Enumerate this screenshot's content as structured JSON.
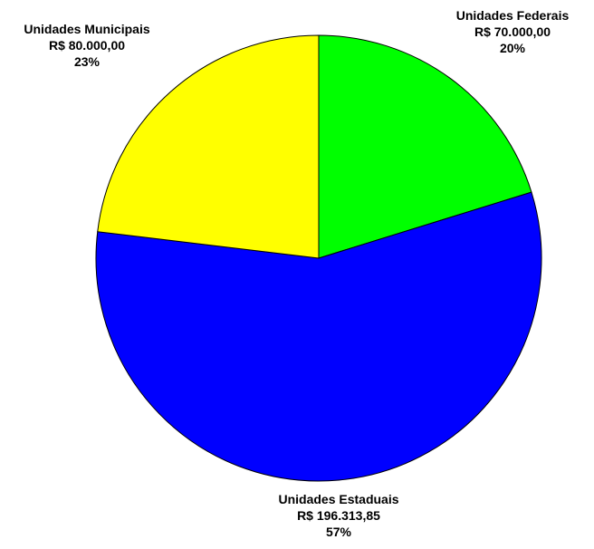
{
  "chart_data": {
    "type": "pie",
    "slices": [
      {
        "name": "Unidades Federais",
        "amount_label": "R$ 70.000,00",
        "value": 70000.0,
        "percent_label": "20%",
        "color": "#00FF00"
      },
      {
        "name": "Unidades Estaduais",
        "amount_label": "R$ 196.313,85",
        "value": 196313.85,
        "percent_label": "57%",
        "color": "#0000FF"
      },
      {
        "name": "Unidades Municipais",
        "amount_label": "R$ 80.000,00",
        "value": 80000.0,
        "percent_label": "23%",
        "color": "#FFFF00"
      }
    ],
    "start": "12 o'clock",
    "direction": "clockwise",
    "legend": "none",
    "labels": "outside, next to each slice"
  }
}
